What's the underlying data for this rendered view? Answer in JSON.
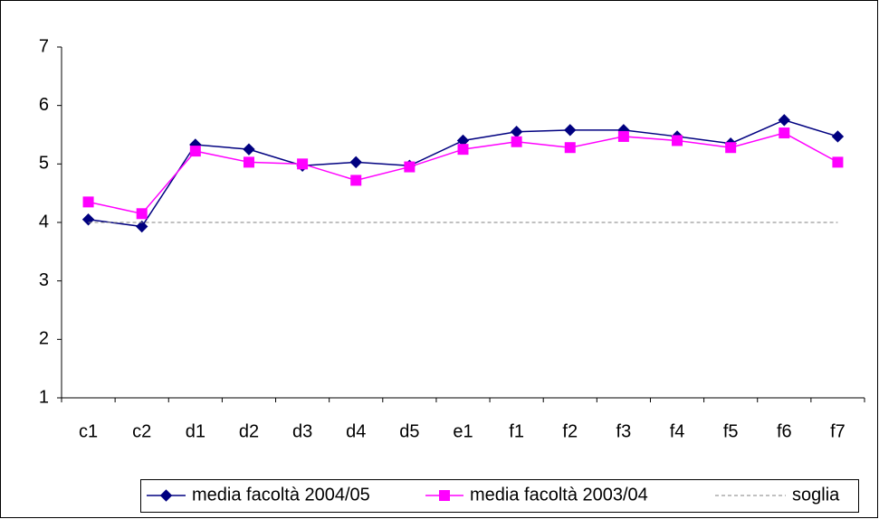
{
  "chart_data": {
    "type": "line",
    "categories": [
      "c1",
      "c2",
      "d1",
      "d2",
      "d3",
      "d4",
      "d5",
      "e1",
      "f1",
      "f2",
      "f3",
      "f4",
      "f5",
      "f6",
      "f7"
    ],
    "series": [
      {
        "name": "media facoltà 2004/05",
        "color": "#000080",
        "marker": "diamond",
        "values": [
          4.05,
          3.93,
          5.33,
          5.25,
          4.97,
          5.03,
          4.97,
          5.4,
          5.55,
          5.58,
          5.58,
          5.47,
          5.35,
          5.75,
          5.47
        ]
      },
      {
        "name": "media facoltà 2003/04",
        "color": "#FF00FF",
        "marker": "square",
        "values": [
          4.35,
          4.15,
          5.22,
          5.03,
          5.0,
          4.72,
          4.95,
          5.25,
          5.38,
          5.28,
          5.47,
          5.4,
          5.28,
          5.53,
          5.03
        ]
      },
      {
        "name": "soglia",
        "color": "#808080",
        "dash": true,
        "values": [
          4,
          4,
          4,
          4,
          4,
          4,
          4,
          4,
          4,
          4,
          4,
          4,
          4,
          4,
          4
        ]
      }
    ],
    "ylim": [
      1,
      7
    ],
    "yticks": [
      1,
      2,
      3,
      4,
      5,
      6,
      7
    ],
    "grid": false,
    "legend": "bottom"
  }
}
